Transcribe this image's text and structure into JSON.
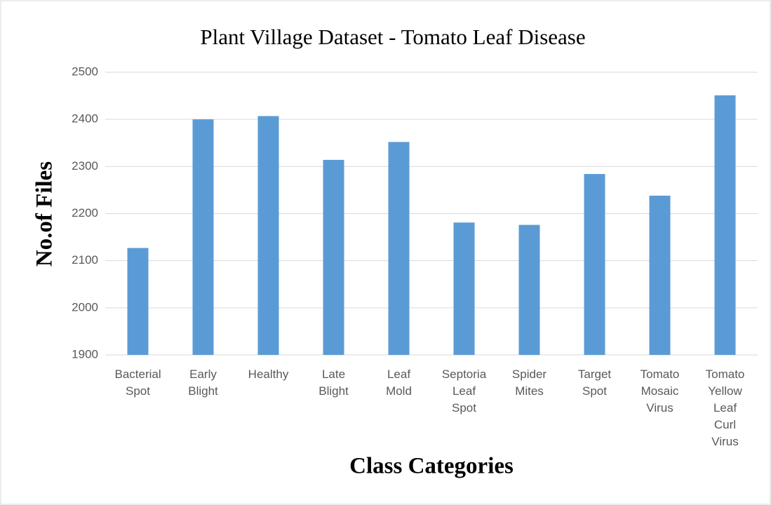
{
  "chart_data": {
    "type": "bar",
    "title": "Plant Village Dataset - Tomato Leaf Disease",
    "x_label": "Class Categories",
    "y_label": "No.of Files",
    "categories": [
      "Bacterial Spot",
      "Early Blight",
      "Healthy",
      "Late Blight",
      "Leaf Mold",
      "Septoria Leaf Spot",
      "Spider Mites",
      "Target Spot",
      "Tomato Mosaic Virus",
      "Tomato Yellow Leaf Curl Virus"
    ],
    "values": [
      2127,
      2400,
      2407,
      2314,
      2352,
      2181,
      2176,
      2284,
      2238,
      2451
    ],
    "color": "#5b9bd5",
    "ylim": [
      1900,
      2500
    ],
    "yticks": [
      1900,
      2000,
      2100,
      2200,
      2300,
      2400,
      2500
    ],
    "grid": true
  }
}
